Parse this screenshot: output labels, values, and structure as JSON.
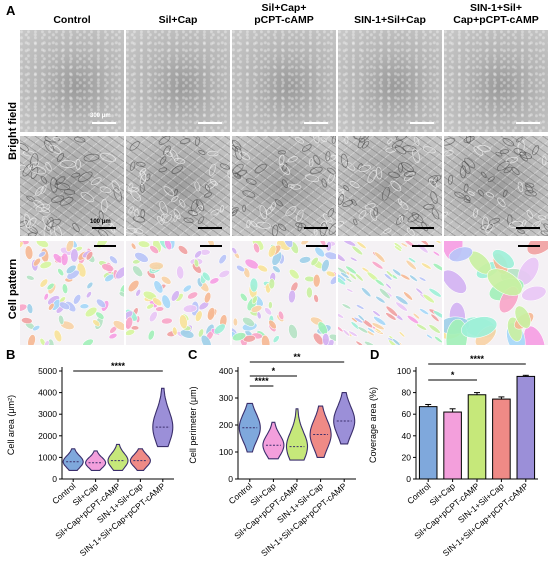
{
  "panel_letters": {
    "A": "A",
    "B": "B",
    "C": "C",
    "D": "D"
  },
  "columns": [
    "Control",
    "Sil+Cap",
    "Sil+Cap+\npCPT-cAMP",
    "SIN-1+Sil+Cap",
    "SIN-1+Sil+\nCap+pCPT-cAMP"
  ],
  "row_labels": {
    "bright_field": "Bright field",
    "cell_pattern": "Cell pattern"
  },
  "scale_bars": {
    "top": "300 μm",
    "bottom": "100 μm"
  },
  "colors": {
    "control": "#7fa8dc",
    "sil_cap": "#f39fdc",
    "sil_cap_pcpt": "#c6e87a",
    "sin1_sil_cap": "#ef8a86",
    "sin1_sil_cap_pcpt": "#9b8fd8"
  },
  "chart_data": [
    {
      "type": "violin",
      "panel": "B",
      "ylabel": "Cell area (μm²)",
      "ylim": [
        0,
        5000
      ],
      "yticks": [
        0,
        1000,
        2000,
        3000,
        4000,
        5000
      ],
      "categories": [
        "Control",
        "Sil+Cap",
        "Sil+Cap+pCPT-cAMP",
        "SIN-1+Sil+Cap",
        "SIN-1+Sil+Cap+pCPT-cAMP"
      ],
      "median": [
        800,
        750,
        850,
        850,
        2400
      ],
      "min": [
        400,
        400,
        400,
        400,
        1500
      ],
      "max": [
        1400,
        1300,
        1600,
        1400,
        4200
      ],
      "significance": [
        {
          "from": 0,
          "to": 4,
          "label": "****"
        }
      ]
    },
    {
      "type": "violin",
      "panel": "C",
      "ylabel": "Cell perimeter (μm)",
      "ylim": [
        0,
        400
      ],
      "yticks": [
        0,
        100,
        200,
        300,
        400
      ],
      "categories": [
        "Control",
        "Sil+Cap",
        "Sil+Cap+pCPT-cAMP",
        "SIN-1+Sil+Cap",
        "SIN-1+Sil+Cap+pCPT-cAMP"
      ],
      "median": [
        190,
        125,
        120,
        165,
        215
      ],
      "min": [
        100,
        75,
        70,
        80,
        130
      ],
      "max": [
        280,
        210,
        260,
        270,
        320
      ],
      "significance": [
        {
          "from": 0,
          "to": 1,
          "label": "****"
        },
        {
          "from": 0,
          "to": 2,
          "label": "*"
        },
        {
          "from": 0,
          "to": 4,
          "label": "**"
        }
      ]
    },
    {
      "type": "bar",
      "panel": "D",
      "ylabel": "Coverage area (%)",
      "ylim": [
        0,
        100
      ],
      "yticks": [
        0,
        20,
        40,
        60,
        80,
        100
      ],
      "categories": [
        "Control",
        "Sil+Cap",
        "Sil+Cap+pCPT-cAMP",
        "SIN-1+Sil+Cap",
        "SIN-1+Sil+Cap+pCPT-cAMP"
      ],
      "values": [
        67,
        62,
        78,
        74,
        95
      ],
      "errors": [
        2,
        3,
        2,
        2,
        1
      ],
      "significance": [
        {
          "from": 0,
          "to": 2,
          "label": "*"
        },
        {
          "from": 0,
          "to": 4,
          "label": "****"
        }
      ]
    }
  ]
}
